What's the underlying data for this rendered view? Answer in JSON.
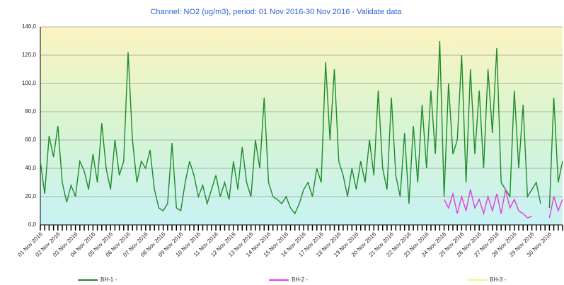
{
  "chart_data": {
    "type": "line",
    "title": "Channel: NO2 (ug/m3), period: 01 Nov 2016-30 Nov 2016 - Validate data",
    "categories": [
      "01 Nov 2016",
      null,
      null,
      null,
      "02 Nov 2016",
      null,
      null,
      null,
      "03 Nov 2016",
      null,
      null,
      null,
      "04 Nov 2016",
      null,
      null,
      null,
      "05 Nov 2016",
      null,
      null,
      null,
      "06 Nov 2016",
      null,
      null,
      null,
      "07 Nov 2016",
      null,
      null,
      null,
      "08 Nov 2016",
      null,
      null,
      null,
      "09 Nov 2016",
      null,
      null,
      null,
      "10 Nov 2016",
      null,
      null,
      null,
      "11 Nov 2016",
      null,
      null,
      null,
      "12 Nov 2016",
      null,
      null,
      null,
      "13 Nov 2016",
      null,
      null,
      null,
      "14 Nov 2016",
      null,
      null,
      null,
      "15 Nov 2016",
      null,
      null,
      null,
      "16 Nov 2016",
      null,
      null,
      null,
      "17 Nov 2016",
      null,
      null,
      null,
      "18 Nov 2016",
      null,
      null,
      null,
      "19 Nov 2016",
      null,
      null,
      null,
      "20 Nov 2016",
      null,
      null,
      null,
      "21 Nov 2016",
      null,
      null,
      null,
      "22 Nov 2016",
      null,
      null,
      null,
      "23 Nov 2016",
      null,
      null,
      null,
      "24 Nov 2016",
      null,
      null,
      null,
      "25 Nov 2016",
      null,
      null,
      null,
      "26 Nov 2016",
      null,
      null,
      null,
      "27 Nov 2016",
      null,
      null,
      null,
      "28 Nov 2016",
      null,
      null,
      null,
      "29 Nov 2016",
      null,
      null,
      null,
      "30 Nov 2016",
      null,
      null,
      null
    ],
    "series": [
      {
        "name": "BH-1 -",
        "color": "#1e8b2a",
        "values": [
          45,
          22,
          63,
          48,
          70,
          30,
          16,
          28,
          20,
          45,
          38,
          25,
          50,
          30,
          72,
          40,
          25,
          60,
          35,
          45,
          122,
          60,
          30,
          45,
          40,
          53,
          25,
          12,
          10,
          15,
          58,
          12,
          10,
          30,
          45,
          35,
          20,
          28,
          15,
          25,
          35,
          20,
          30,
          18,
          45,
          25,
          55,
          30,
          20,
          60,
          40,
          90,
          30,
          20,
          18,
          15,
          20,
          12,
          8,
          15,
          25,
          30,
          20,
          40,
          30,
          115,
          60,
          110,
          45,
          35,
          20,
          40,
          25,
          45,
          30,
          60,
          35,
          95,
          40,
          25,
          90,
          35,
          20,
          65,
          15,
          70,
          30,
          85,
          40,
          95,
          50,
          130,
          20,
          100,
          50,
          60,
          120,
          30,
          110,
          50,
          95,
          40,
          110,
          65,
          125,
          30,
          25,
          20,
          95,
          40,
          85,
          20,
          25,
          30,
          15,
          null,
          12,
          90,
          30,
          45
        ]
      },
      {
        "name": "BH-2 -",
        "color": "#e03ce0",
        "values": [
          null,
          null,
          null,
          null,
          null,
          null,
          null,
          null,
          null,
          null,
          null,
          null,
          null,
          null,
          null,
          null,
          null,
          null,
          null,
          null,
          null,
          null,
          null,
          null,
          null,
          null,
          null,
          null,
          null,
          null,
          null,
          null,
          null,
          null,
          null,
          null,
          null,
          null,
          null,
          null,
          null,
          null,
          null,
          null,
          null,
          null,
          null,
          null,
          null,
          null,
          null,
          null,
          null,
          null,
          null,
          null,
          null,
          null,
          null,
          null,
          null,
          null,
          null,
          null,
          null,
          null,
          null,
          null,
          null,
          null,
          null,
          null,
          null,
          null,
          null,
          null,
          null,
          null,
          null,
          null,
          null,
          null,
          null,
          null,
          null,
          null,
          null,
          null,
          null,
          null,
          null,
          null,
          18,
          12,
          22,
          8,
          20,
          10,
          25,
          12,
          18,
          8,
          20,
          10,
          22,
          8,
          25,
          12,
          18,
          10,
          8,
          5,
          6,
          null,
          null,
          null,
          5,
          20,
          10,
          18
        ]
      },
      {
        "name": "BH-3 -",
        "color": "#f4f47a",
        "values": [
          null,
          null,
          null,
          null,
          null,
          null,
          null,
          null,
          null,
          null,
          null,
          null,
          null,
          null,
          null,
          null,
          null,
          null,
          null,
          null,
          null,
          null,
          null,
          null,
          null,
          null,
          null,
          null,
          null,
          null,
          null,
          null,
          null,
          null,
          null,
          null,
          null,
          null,
          null,
          null,
          null,
          null,
          null,
          null,
          null,
          null,
          null,
          null,
          null,
          null,
          null,
          null,
          null,
          null,
          null,
          null,
          null,
          null,
          null,
          null,
          null,
          null,
          null,
          null,
          null,
          null,
          null,
          null,
          null,
          null,
          null,
          null,
          null,
          null,
          null,
          null,
          null,
          null,
          null,
          null,
          null,
          null,
          null,
          null,
          null,
          null,
          null,
          null,
          null,
          null,
          null,
          null,
          null,
          null,
          null,
          null,
          null,
          null,
          null,
          null,
          null,
          null,
          null,
          null,
          null,
          null,
          null,
          null,
          null,
          null,
          null,
          null,
          null,
          null,
          null,
          null,
          null,
          null,
          null,
          null
        ]
      }
    ],
    "ylim": [
      0,
      140
    ],
    "yticks": [
      {
        "value": 0,
        "label": "0,0"
      },
      {
        "value": 20,
        "label": "20,0"
      },
      {
        "value": 40,
        "label": "40,0"
      },
      {
        "value": 60,
        "label": "60,0"
      },
      {
        "value": 80,
        "label": "80,0"
      },
      {
        "value": 100,
        "label": "100,0"
      },
      {
        "value": 120,
        "label": "120,0"
      },
      {
        "value": 140,
        "label": "140,0"
      }
    ],
    "grid": true
  }
}
